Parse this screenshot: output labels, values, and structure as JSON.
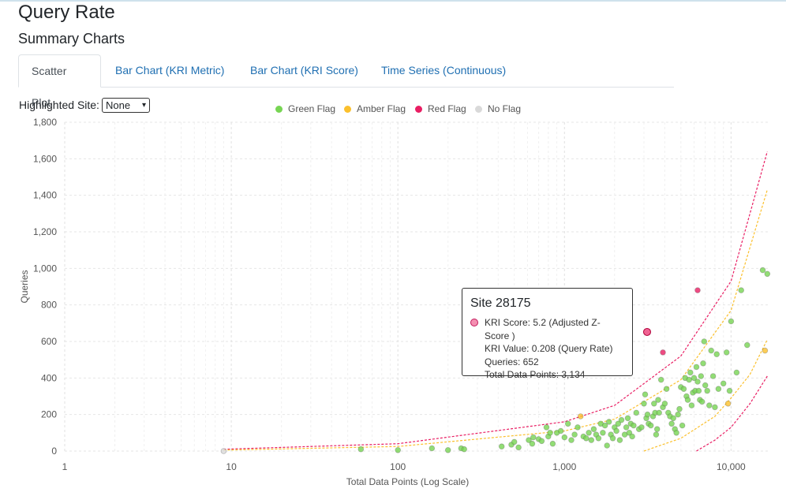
{
  "page": {
    "title": "Query Rate",
    "subtitle": "Summary Charts"
  },
  "tabs": [
    {
      "label": "Scatter Plot",
      "active": true
    },
    {
      "label": "Bar Chart (KRI Metric)",
      "active": false
    },
    {
      "label": "Bar Chart (KRI Score)",
      "active": false
    },
    {
      "label": "Time Series (Continuous)",
      "active": false
    }
  ],
  "controls": {
    "highlight_label": "Highlighted Site:",
    "highlight_value": "None"
  },
  "legend": [
    {
      "label": "Green Flag",
      "color": "#77d553"
    },
    {
      "label": "Amber Flag",
      "color": "#fbc02d"
    },
    {
      "label": "Red Flag",
      "color": "#e91e63"
    },
    {
      "label": "No Flag",
      "color": "#d9d9d9"
    }
  ],
  "tooltip": {
    "title": "Site 28175",
    "lines": [
      "KRI Score: 5.2 (Adjusted Z-Score )",
      "KRI Value: 0.208 (Query Rate)",
      "Queries: 652",
      "Total Data Points: 3,134"
    ]
  },
  "chart_data": {
    "type": "scatter",
    "xlabel": "Total Data Points (Log Scale)",
    "ylabel": "Queries",
    "x_scale": "log",
    "xlim": [
      1,
      17000
    ],
    "ylim": [
      0,
      1800
    ],
    "x_ticks": [
      1,
      10,
      100,
      1000,
      10000
    ],
    "x_tick_labels": [
      "1",
      "10",
      "100",
      "1,000",
      "10,000"
    ],
    "y_ticks": [
      0,
      200,
      400,
      600,
      800,
      1000,
      1200,
      1400,
      1600,
      1800
    ],
    "y_tick_labels": [
      "0",
      "200",
      "400",
      "600",
      "800",
      "1,000",
      "1,200",
      "1,400",
      "1,600",
      "1,800"
    ],
    "grid": true,
    "legend_position": "top",
    "series": [
      {
        "name": "Green Flag",
        "color": "#77d553",
        "points": [
          [
            60,
            10
          ],
          [
            100,
            5
          ],
          [
            160,
            15
          ],
          [
            200,
            5
          ],
          [
            240,
            15
          ],
          [
            250,
            10
          ],
          [
            420,
            25
          ],
          [
            480,
            35
          ],
          [
            500,
            50
          ],
          [
            530,
            20
          ],
          [
            610,
            60
          ],
          [
            640,
            40
          ],
          [
            650,
            75
          ],
          [
            700,
            65
          ],
          [
            730,
            55
          ],
          [
            780,
            130
          ],
          [
            800,
            80
          ],
          [
            820,
            100
          ],
          [
            850,
            40
          ],
          [
            900,
            100
          ],
          [
            950,
            110
          ],
          [
            1000,
            75
          ],
          [
            1050,
            150
          ],
          [
            1100,
            60
          ],
          [
            1150,
            90
          ],
          [
            1200,
            130
          ],
          [
            1300,
            80
          ],
          [
            1350,
            70
          ],
          [
            1400,
            100
          ],
          [
            1450,
            60
          ],
          [
            1500,
            120
          ],
          [
            1550,
            90
          ],
          [
            1600,
            70
          ],
          [
            1650,
            150
          ],
          [
            1700,
            100
          ],
          [
            1750,
            140
          ],
          [
            1800,
            30
          ],
          [
            1850,
            160
          ],
          [
            1900,
            90
          ],
          [
            1950,
            70
          ],
          [
            2000,
            130
          ],
          [
            2050,
            110
          ],
          [
            2100,
            150
          ],
          [
            2150,
            60
          ],
          [
            2200,
            170
          ],
          [
            2300,
            90
          ],
          [
            2350,
            130
          ],
          [
            2400,
            180
          ],
          [
            2450,
            100
          ],
          [
            2500,
            150
          ],
          [
            2550,
            80
          ],
          [
            2600,
            140
          ],
          [
            2700,
            210
          ],
          [
            2800,
            120
          ],
          [
            2900,
            130
          ],
          [
            3000,
            260
          ],
          [
            3050,
            310
          ],
          [
            3100,
            180
          ],
          [
            3150,
            200
          ],
          [
            3200,
            150
          ],
          [
            3300,
            140
          ],
          [
            3400,
            190
          ],
          [
            3450,
            260
          ],
          [
            3500,
            210
          ],
          [
            3550,
            90
          ],
          [
            3600,
            120
          ],
          [
            3650,
            280
          ],
          [
            3700,
            210
          ],
          [
            3800,
            390
          ],
          [
            3900,
            240
          ],
          [
            4000,
            260
          ],
          [
            4100,
            340
          ],
          [
            4200,
            210
          ],
          [
            4300,
            190
          ],
          [
            4400,
            150
          ],
          [
            4500,
            180
          ],
          [
            4600,
            120
          ],
          [
            4700,
            100
          ],
          [
            4800,
            200
          ],
          [
            4900,
            230
          ],
          [
            5000,
            350
          ],
          [
            5100,
            140
          ],
          [
            5200,
            340
          ],
          [
            5300,
            400
          ],
          [
            5400,
            300
          ],
          [
            5500,
            280
          ],
          [
            5600,
            390
          ],
          [
            5700,
            430
          ],
          [
            5800,
            250
          ],
          [
            5900,
            320
          ],
          [
            6000,
            400
          ],
          [
            6100,
            330
          ],
          [
            6200,
            460
          ],
          [
            6300,
            380
          ],
          [
            6400,
            330
          ],
          [
            6500,
            280
          ],
          [
            6600,
            410
          ],
          [
            6700,
            270
          ],
          [
            6800,
            480
          ],
          [
            6900,
            600
          ],
          [
            7000,
            360
          ],
          [
            7200,
            330
          ],
          [
            7400,
            250
          ],
          [
            7600,
            550
          ],
          [
            7800,
            410
          ],
          [
            8000,
            240
          ],
          [
            8200,
            530
          ],
          [
            8400,
            340
          ],
          [
            9000,
            370
          ],
          [
            9400,
            540
          ],
          [
            9800,
            330
          ],
          [
            10000,
            710
          ],
          [
            10800,
            430
          ],
          [
            11500,
            880
          ],
          [
            12500,
            580
          ],
          [
            15500,
            990
          ],
          [
            16500,
            970
          ]
        ]
      },
      {
        "name": "Amber Flag",
        "color": "#fbc02d",
        "points": [
          [
            1250,
            190
          ],
          [
            9600,
            260
          ],
          [
            16000,
            550
          ]
        ]
      },
      {
        "name": "Red Flag",
        "color": "#e91e63",
        "points": [
          [
            3134,
            652
          ],
          [
            3900,
            540
          ],
          [
            6300,
            880
          ]
        ]
      },
      {
        "name": "No Flag",
        "color": "#d9d9d9",
        "points": [
          [
            9,
            0
          ]
        ]
      }
    ],
    "threshold_curves": [
      {
        "name": "red-upper",
        "color": "#e91e63",
        "points": [
          [
            9,
            10
          ],
          [
            100,
            40
          ],
          [
            1000,
            160
          ],
          [
            2000,
            250
          ],
          [
            5000,
            520
          ],
          [
            10000,
            930
          ],
          [
            16500,
            1640
          ]
        ]
      },
      {
        "name": "amber-upper",
        "color": "#fbc02d",
        "points": [
          [
            9,
            5
          ],
          [
            100,
            25
          ],
          [
            1000,
            110
          ],
          [
            2000,
            175
          ],
          [
            5000,
            390
          ],
          [
            10000,
            770
          ],
          [
            16500,
            1430
          ]
        ]
      },
      {
        "name": "amber-lower",
        "color": "#fbc02d",
        "points": [
          [
            3000,
            0
          ],
          [
            5000,
            70
          ],
          [
            8000,
            190
          ],
          [
            10000,
            290
          ],
          [
            13000,
            420
          ],
          [
            16500,
            610
          ]
        ]
      },
      {
        "name": "red-lower",
        "color": "#e91e63",
        "points": [
          [
            6200,
            0
          ],
          [
            8000,
            60
          ],
          [
            10000,
            130
          ],
          [
            13000,
            260
          ],
          [
            16500,
            410
          ]
        ]
      }
    ],
    "highlighted_point": {
      "site": "Site 28175",
      "x": 3134,
      "y": 652
    }
  }
}
